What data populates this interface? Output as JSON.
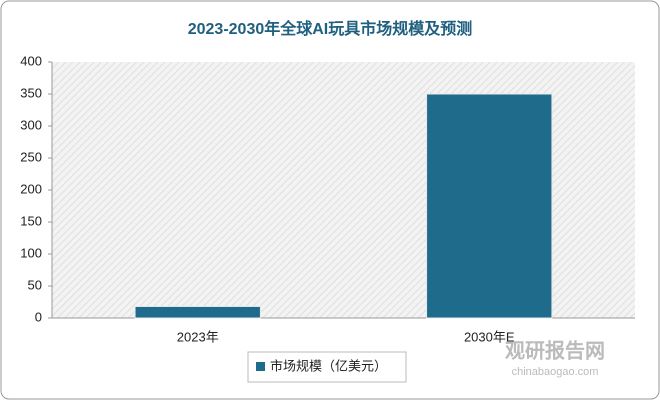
{
  "chart_data": {
    "type": "bar",
    "title": "2023-2030年全球AI玩具市场规模及预测",
    "categories": [
      "2023年",
      "2030年E"
    ],
    "series": [
      {
        "name": "市场规模（亿美元）",
        "color": "#1e6b8c",
        "values": [
          18,
          350
        ]
      }
    ],
    "ylim": [
      0,
      400
    ],
    "yticks": [
      0,
      50,
      100,
      150,
      200,
      250,
      300,
      350,
      400
    ],
    "legend": "bottom",
    "watermark": {
      "brand": "观研报告网",
      "url": "chinabaogao.com"
    }
  }
}
